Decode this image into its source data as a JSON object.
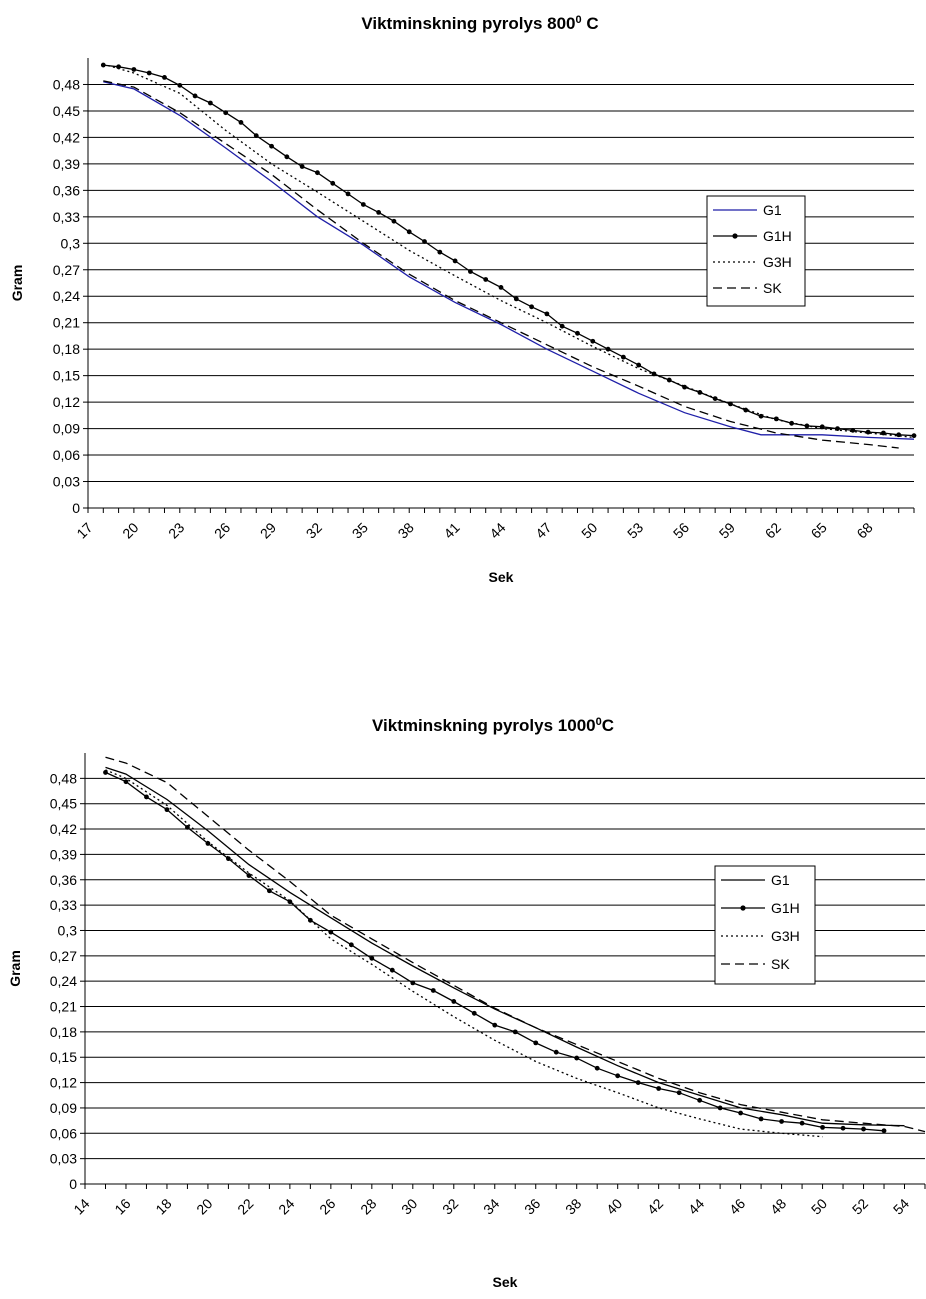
{
  "chart_data": [
    {
      "type": "line",
      "title": "Viktminskning pyrolys 800",
      "title_sup": "0",
      "title_suffix": " C",
      "xlabel": "Sek",
      "ylabel": "Gram",
      "xlim": [
        17,
        71
      ],
      "ylim": [
        0,
        0.51
      ],
      "grid": "horizontal",
      "legend_position": "right-middle",
      "x_ticks": [
        "17",
        "20",
        "23",
        "26",
        "29",
        "32",
        "35",
        "38",
        "41",
        "44",
        "47",
        "50",
        "53",
        "56",
        "59",
        "62",
        "65",
        "68"
      ],
      "y_ticks": [
        "0",
        "0,03",
        "0,06",
        "0,09",
        "0,12",
        "0,15",
        "0,18",
        "0,21",
        "0,24",
        "0,27",
        "0,3",
        "0,33",
        "0,36",
        "0,39",
        "0,42",
        "0,45",
        "0,48"
      ],
      "series": [
        {
          "name": "G1",
          "color": "#1f1fa8",
          "style": "solid",
          "marker": false,
          "x": [
            18,
            20,
            23,
            26,
            29,
            32,
            35,
            38,
            41,
            44,
            47,
            50,
            53,
            56,
            59,
            61,
            62,
            65,
            68,
            71
          ],
          "y": [
            0.483,
            0.475,
            0.445,
            0.408,
            0.37,
            0.33,
            0.298,
            0.262,
            0.233,
            0.208,
            0.18,
            0.155,
            0.13,
            0.108,
            0.092,
            0.083,
            0.083,
            0.083,
            0.08,
            0.078
          ]
        },
        {
          "name": "G1H",
          "color": "#000000",
          "style": "solid",
          "marker": true,
          "x": [
            18,
            19,
            20,
            21,
            22,
            23,
            24,
            25,
            26,
            27,
            28,
            29,
            30,
            31,
            32,
            33,
            34,
            35,
            36,
            37,
            38,
            39,
            40,
            41,
            42,
            43,
            44,
            45,
            46,
            47,
            48,
            49,
            50,
            51,
            52,
            53,
            54,
            55,
            56,
            57,
            58,
            59,
            60,
            61,
            62,
            63,
            64,
            65,
            66,
            67,
            68,
            69,
            70,
            71
          ],
          "y": [
            0.502,
            0.5,
            0.497,
            0.493,
            0.488,
            0.479,
            0.467,
            0.459,
            0.448,
            0.437,
            0.422,
            0.41,
            0.398,
            0.387,
            0.38,
            0.368,
            0.356,
            0.344,
            0.335,
            0.325,
            0.313,
            0.302,
            0.29,
            0.28,
            0.268,
            0.259,
            0.25,
            0.237,
            0.228,
            0.22,
            0.206,
            0.198,
            0.189,
            0.18,
            0.171,
            0.162,
            0.152,
            0.145,
            0.137,
            0.131,
            0.124,
            0.118,
            0.111,
            0.104,
            0.101,
            0.096,
            0.093,
            0.092,
            0.09,
            0.088,
            0.086,
            0.085,
            0.083,
            0.082
          ]
        },
        {
          "name": "G3H",
          "color": "#000000",
          "style": "dotted",
          "marker": false,
          "x": [
            18,
            20,
            23,
            26,
            29,
            32,
            35,
            38,
            41,
            44,
            47,
            50,
            53,
            56,
            59,
            62,
            65,
            68,
            71
          ],
          "y": [
            0.503,
            0.493,
            0.47,
            0.428,
            0.39,
            0.358,
            0.325,
            0.292,
            0.263,
            0.235,
            0.21,
            0.183,
            0.158,
            0.138,
            0.118,
            0.1,
            0.09,
            0.085,
            0.08
          ]
        },
        {
          "name": "SK",
          "color": "#000000",
          "style": "dashed",
          "marker": false,
          "x": [
            18,
            20,
            23,
            26,
            29,
            32,
            35,
            38,
            41,
            44,
            47,
            50,
            53,
            56,
            59,
            62,
            65,
            68,
            70
          ],
          "y": [
            0.484,
            0.477,
            0.448,
            0.413,
            0.378,
            0.338,
            0.3,
            0.265,
            0.235,
            0.21,
            0.185,
            0.16,
            0.138,
            0.115,
            0.098,
            0.085,
            0.077,
            0.072,
            0.068
          ]
        }
      ]
    },
    {
      "type": "line",
      "title": "Viktminskning pyrolys 1000",
      "title_sup": "0",
      "title_suffix": "C",
      "xlabel": "Sek",
      "ylabel": "Gram",
      "xlim": [
        14,
        55
      ],
      "ylim": [
        0,
        0.51
      ],
      "grid": "horizontal",
      "legend_position": "right-middle",
      "x_ticks": [
        "14",
        "16",
        "18",
        "20",
        "22",
        "24",
        "26",
        "28",
        "30",
        "32",
        "34",
        "36",
        "38",
        "40",
        "42",
        "44",
        "46",
        "48",
        "50",
        "52",
        "54"
      ],
      "y_ticks": [
        "0",
        "0,03",
        "0,06",
        "0,09",
        "0,12",
        "0,15",
        "0,18",
        "0,21",
        "0,24",
        "0,27",
        "0,3",
        "0,33",
        "0,36",
        "0,39",
        "0,42",
        "0,45",
        "0,48"
      ],
      "series": [
        {
          "name": "G1",
          "color": "#000000",
          "style": "solid",
          "marker": false,
          "x": [
            15,
            16,
            18,
            20,
            22,
            24,
            26,
            28,
            30,
            32,
            34,
            36,
            38,
            40,
            42,
            44,
            46,
            48,
            50,
            52,
            54
          ],
          "y": [
            0.493,
            0.485,
            0.455,
            0.418,
            0.378,
            0.345,
            0.315,
            0.285,
            0.258,
            0.232,
            0.207,
            0.185,
            0.162,
            0.14,
            0.12,
            0.105,
            0.09,
            0.082,
            0.072,
            0.07,
            0.069
          ]
        },
        {
          "name": "G1H",
          "color": "#000000",
          "style": "solid",
          "marker": true,
          "x": [
            15,
            16,
            17,
            18,
            19,
            20,
            21,
            22,
            23,
            24,
            25,
            26,
            27,
            28,
            29,
            30,
            31,
            32,
            33,
            34,
            35,
            36,
            37,
            38,
            39,
            40,
            41,
            42,
            43,
            44,
            45,
            46,
            47,
            48,
            49,
            50,
            51,
            52,
            53
          ],
          "y": [
            0.487,
            0.476,
            0.458,
            0.443,
            0.422,
            0.403,
            0.385,
            0.365,
            0.347,
            0.334,
            0.312,
            0.298,
            0.283,
            0.267,
            0.253,
            0.238,
            0.229,
            0.216,
            0.202,
            0.188,
            0.18,
            0.167,
            0.156,
            0.149,
            0.137,
            0.128,
            0.12,
            0.113,
            0.108,
            0.099,
            0.09,
            0.084,
            0.077,
            0.074,
            0.072,
            0.067,
            0.066,
            0.065,
            0.063
          ]
        },
        {
          "name": "G3H",
          "color": "#000000",
          "style": "dotted",
          "marker": false,
          "x": [
            15,
            16,
            18,
            20,
            22,
            24,
            26,
            28,
            30,
            32,
            34,
            36,
            38,
            40,
            42,
            44,
            46,
            48,
            50
          ],
          "y": [
            0.49,
            0.48,
            0.448,
            0.405,
            0.368,
            0.335,
            0.29,
            0.26,
            0.228,
            0.198,
            0.17,
            0.145,
            0.125,
            0.108,
            0.09,
            0.077,
            0.065,
            0.06,
            0.056
          ]
        },
        {
          "name": "SK",
          "color": "#000000",
          "style": "dashed",
          "marker": false,
          "x": [
            15,
            16,
            18,
            20,
            22,
            24,
            26,
            28,
            30,
            32,
            34,
            36,
            38,
            40,
            42,
            44,
            46,
            48,
            50,
            52,
            54,
            55
          ],
          "y": [
            0.505,
            0.498,
            0.475,
            0.435,
            0.395,
            0.358,
            0.318,
            0.29,
            0.262,
            0.235,
            0.208,
            0.185,
            0.165,
            0.145,
            0.125,
            0.108,
            0.094,
            0.085,
            0.076,
            0.072,
            0.068,
            0.062
          ]
        }
      ]
    }
  ]
}
